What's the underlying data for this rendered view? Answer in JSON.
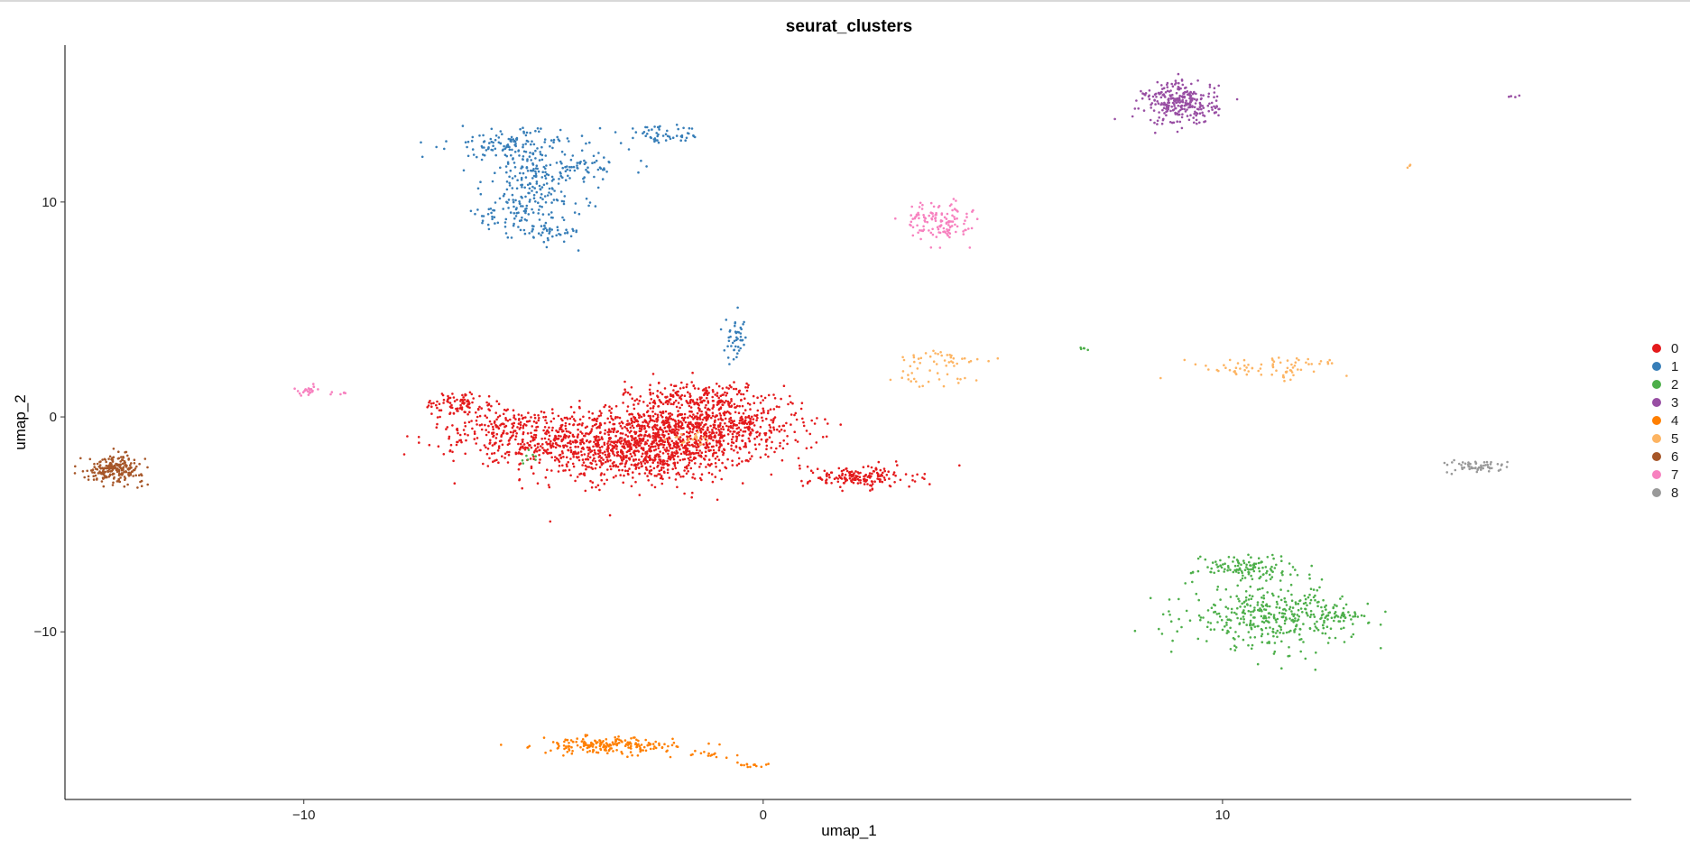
{
  "chart_data": {
    "type": "scatter",
    "title": "seurat_clusters",
    "xlabel": "umap_1",
    "ylabel": "umap_2",
    "xlim": [
      -15.2,
      18.9
    ],
    "ylim": [
      -17.8,
      17.3
    ],
    "x_ticks": [
      -10,
      0,
      10
    ],
    "y_ticks": [
      10,
      0,
      -10
    ],
    "x_tick_labels": [
      "−10",
      "0",
      "10"
    ],
    "y_tick_labels": [
      "10",
      "0",
      "−10"
    ],
    "grid": false,
    "legend_position": "right",
    "legend_title": "",
    "series": [
      {
        "name": "0",
        "color": "#E41A1C",
        "clusters": [
          {
            "cx": -2.7,
            "cy": -1.3,
            "sx": 1.25,
            "sy": 0.85,
            "n": 1300
          },
          {
            "cx": -0.9,
            "cy": -0.3,
            "sx": 0.9,
            "sy": 0.7,
            "n": 450
          },
          {
            "cx": -1.6,
            "cy": 0.9,
            "sx": 0.7,
            "sy": 0.4,
            "n": 180
          },
          {
            "cx": -5.4,
            "cy": -0.7,
            "sx": 0.9,
            "sy": 0.6,
            "n": 260
          },
          {
            "cx": -6.6,
            "cy": 0.6,
            "sx": 0.4,
            "sy": 0.3,
            "n": 90
          },
          {
            "cx": 2.1,
            "cy": -2.8,
            "sx": 0.6,
            "sy": 0.25,
            "n": 170
          }
        ]
      },
      {
        "name": "1",
        "color": "#377EB8",
        "clusters": [
          {
            "cx": -5.6,
            "cy": 12.7,
            "sx": 0.6,
            "sy": 0.35,
            "n": 110
          },
          {
            "cx": -5.0,
            "cy": 10.6,
            "sx": 0.55,
            "sy": 1.1,
            "n": 220
          },
          {
            "cx": -4.2,
            "cy": 11.6,
            "sx": 0.7,
            "sy": 0.3,
            "n": 70
          },
          {
            "cx": -5.9,
            "cy": 9.3,
            "sx": 0.3,
            "sy": 0.2,
            "n": 25
          },
          {
            "cx": -4.6,
            "cy": 8.6,
            "sx": 0.35,
            "sy": 0.25,
            "n": 40
          },
          {
            "cx": -2.2,
            "cy": 13.1,
            "sx": 0.45,
            "sy": 0.2,
            "n": 55
          },
          {
            "cx": -0.6,
            "cy": 3.6,
            "sx": 0.12,
            "sy": 0.5,
            "n": 45
          }
        ]
      },
      {
        "name": "2",
        "color": "#4DAF4A",
        "clusters": [
          {
            "cx": 11.1,
            "cy": -9.3,
            "sx": 0.9,
            "sy": 0.7,
            "n": 380
          },
          {
            "cx": 10.5,
            "cy": -7.0,
            "sx": 0.55,
            "sy": 0.3,
            "n": 120
          },
          {
            "cx": 12.7,
            "cy": -9.3,
            "sx": 0.4,
            "sy": 0.15,
            "n": 30
          },
          {
            "cx": 7.0,
            "cy": 3.2,
            "sx": 0.06,
            "sy": 0.05,
            "n": 5
          },
          {
            "cx": -5.1,
            "cy": -1.9,
            "sx": 0.1,
            "sy": 0.15,
            "n": 8
          }
        ]
      },
      {
        "name": "3",
        "color": "#984EA3",
        "clusters": [
          {
            "cx": 9.1,
            "cy": 14.6,
            "sx": 0.4,
            "sy": 0.5,
            "n": 280
          },
          {
            "cx": 16.3,
            "cy": 14.9,
            "sx": 0.08,
            "sy": 0.04,
            "n": 4
          }
        ]
      },
      {
        "name": "4",
        "color": "#FF7F00",
        "clusters": [
          {
            "cx": -3.4,
            "cy": -15.3,
            "sx": 0.75,
            "sy": 0.18,
            "n": 200
          },
          {
            "cx": -1.3,
            "cy": -15.7,
            "sx": 0.55,
            "sy": 0.08,
            "n": 15
          },
          {
            "cx": -0.2,
            "cy": -16.2,
            "sx": 0.2,
            "sy": 0.08,
            "n": 15
          }
        ]
      },
      {
        "name": "5",
        "color": "#FDB462",
        "clusters": [
          {
            "cx": 3.9,
            "cy": 2.6,
            "sx": 0.5,
            "sy": 0.25,
            "n": 40
          },
          {
            "cx": 3.8,
            "cy": 1.7,
            "sx": 0.5,
            "sy": 0.25,
            "n": 20
          },
          {
            "cx": 11.0,
            "cy": 2.3,
            "sx": 0.9,
            "sy": 0.25,
            "n": 75
          },
          {
            "cx": 14.1,
            "cy": 11.7,
            "sx": 0.05,
            "sy": 0.05,
            "n": 3
          },
          {
            "cx": -1.6,
            "cy": -1.0,
            "sx": 0.2,
            "sy": 0.15,
            "n": 20
          }
        ]
      },
      {
        "name": "6",
        "color": "#A65628",
        "clusters": [
          {
            "cx": -14.1,
            "cy": -2.4,
            "sx": 0.3,
            "sy": 0.3,
            "n": 220
          }
        ]
      },
      {
        "name": "7",
        "color": "#F781BF",
        "clusters": [
          {
            "cx": 3.8,
            "cy": 9.1,
            "sx": 0.35,
            "sy": 0.45,
            "n": 130
          },
          {
            "cx": -9.9,
            "cy": 1.2,
            "sx": 0.15,
            "sy": 0.1,
            "n": 25
          },
          {
            "cx": -9.4,
            "cy": 1.1,
            "sx": 0.25,
            "sy": 0.05,
            "n": 6
          }
        ]
      },
      {
        "name": "8",
        "color": "#999999",
        "clusters": [
          {
            "cx": 15.6,
            "cy": -2.3,
            "sx": 0.35,
            "sy": 0.15,
            "n": 60
          }
        ]
      }
    ]
  }
}
